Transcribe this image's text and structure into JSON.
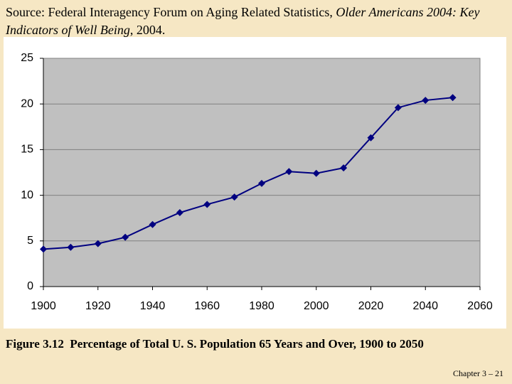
{
  "source": {
    "prefix": "Source: Federal Interagency Forum on Aging Related Statistics, ",
    "italic": "Older Americans 2004: Key Indicators of Well Being",
    "suffix": ", 2004."
  },
  "chart_data": {
    "type": "line",
    "x": [
      1900,
      1910,
      1920,
      1930,
      1940,
      1950,
      1960,
      1970,
      1980,
      1990,
      2000,
      2010,
      2020,
      2030,
      2040,
      2050
    ],
    "series": [
      {
        "color": "#000080",
        "values": [
          4.1,
          4.3,
          4.7,
          5.4,
          6.8,
          8.1,
          9.0,
          9.8,
          11.3,
          12.6,
          12.4,
          13.0,
          16.3,
          19.6,
          20.4,
          20.7
        ]
      }
    ],
    "xlim": [
      1900,
      2060
    ],
    "xticks": [
      1900,
      1920,
      1940,
      1960,
      1980,
      2000,
      2020,
      2040,
      2060
    ],
    "ylim": [
      0,
      25
    ],
    "yticks": [
      0,
      5,
      10,
      15,
      20,
      25
    ],
    "grid": true
  },
  "caption": "Figure 3.12  Percentage of Total U. S. Population 65 Years and Over, 1900 to 2050",
  "footer": "Chapter 3 – 21"
}
